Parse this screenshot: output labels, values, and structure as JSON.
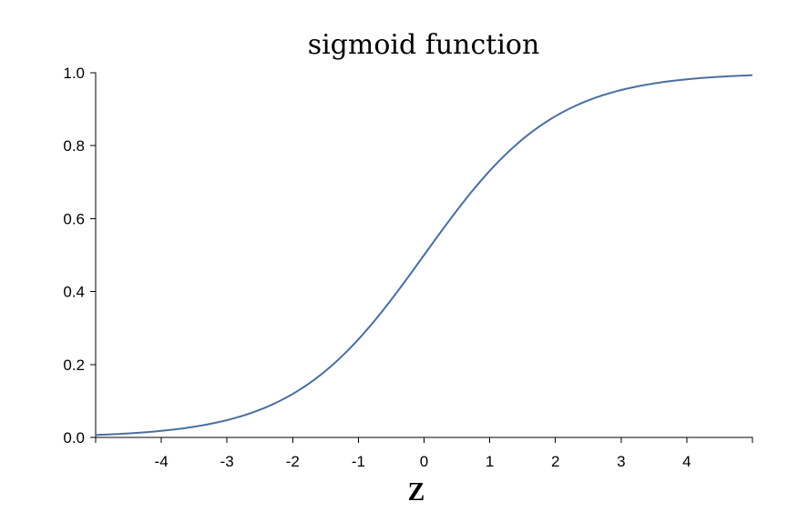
{
  "chart_data": {
    "type": "line",
    "title": "sigmoid function",
    "xlabel": "Z",
    "ylabel": "",
    "xlim": [
      -5,
      5
    ],
    "ylim": [
      0,
      1
    ],
    "x_ticks": [
      -4,
      -3,
      -2,
      -1,
      0,
      1,
      2,
      3,
      4
    ],
    "y_ticks": [
      "0.0",
      "0.2",
      "0.4",
      "0.6",
      "0.8",
      "1.0"
    ],
    "grid": false,
    "line_color": "#4a6fa0",
    "series": [
      {
        "x": [
          -5,
          -4.5,
          -4,
          -3.5,
          -3,
          -2.5,
          -2,
          -1.5,
          -1,
          -0.5,
          0,
          0.5,
          1,
          1.5,
          2,
          2.5,
          3,
          3.5,
          4,
          4.5,
          5
        ],
        "y": [
          0.007,
          0.011,
          0.018,
          0.029,
          0.047,
          0.076,
          0.119,
          0.182,
          0.269,
          0.378,
          0.5,
          0.622,
          0.731,
          0.818,
          0.881,
          0.924,
          0.953,
          0.971,
          0.982,
          0.989,
          0.993
        ]
      }
    ]
  }
}
